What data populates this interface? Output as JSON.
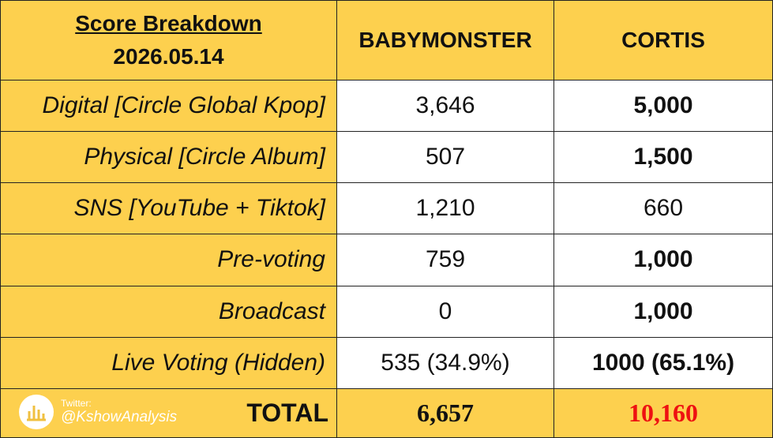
{
  "header": {
    "title": "Score Breakdown",
    "date": "2026.05.14",
    "columns": [
      "BABYMONSTER",
      "CORTIS"
    ]
  },
  "table": {
    "rows": [
      [
        "Digital [Circle Global Kpop]",
        "3,646",
        "5,000"
      ],
      [
        "Physical [Circle Album]",
        "507",
        "1,500"
      ],
      [
        "SNS [YouTube + Tiktok]",
        "1,210",
        "660"
      ],
      [
        "Pre-voting",
        "759",
        "1,000"
      ],
      [
        "Broadcast",
        "0",
        "1,000"
      ],
      [
        "Live Voting (Hidden)",
        "535 (34.9%)",
        "1000 (65.1%)"
      ]
    ]
  },
  "total": {
    "label": "TOTAL",
    "values": [
      "6,657",
      "10,160"
    ]
  },
  "watermark": {
    "platform": "Twitter:",
    "handle": "@KshowAnalysis"
  }
}
